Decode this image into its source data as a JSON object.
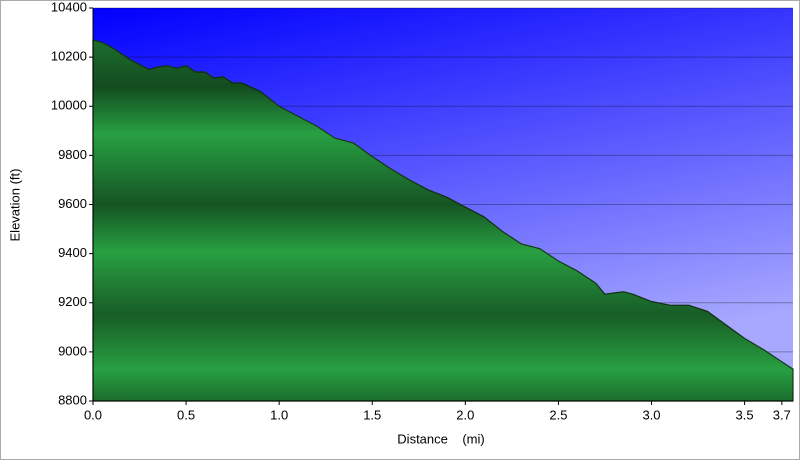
{
  "chart_data": {
    "type": "area",
    "x_label": "Distance    (mi)",
    "y_label": "Elevation (ft)",
    "color": "#2aa845",
    "x": [
      0.0,
      0.05,
      0.1,
      0.2,
      0.3,
      0.35,
      0.4,
      0.45,
      0.5,
      0.55,
      0.6,
      0.65,
      0.7,
      0.75,
      0.8,
      0.9,
      1.0,
      1.1,
      1.2,
      1.3,
      1.35,
      1.4,
      1.5,
      1.6,
      1.7,
      1.8,
      1.9,
      2.0,
      2.1,
      2.2,
      2.3,
      2.4,
      2.5,
      2.6,
      2.7,
      2.75,
      2.8,
      2.85,
      2.9,
      3.0,
      3.1,
      3.2,
      3.3,
      3.4,
      3.5,
      3.6,
      3.7,
      3.76
    ],
    "values": [
      10270,
      10260,
      10240,
      10190,
      10150,
      10160,
      10165,
      10155,
      10165,
      10140,
      10140,
      10115,
      10120,
      10095,
      10095,
      10060,
      10000,
      9960,
      9920,
      9870,
      9860,
      9850,
      9795,
      9745,
      9700,
      9660,
      9630,
      9590,
      9550,
      9490,
      9440,
      9420,
      9370,
      9330,
      9280,
      9235,
      9240,
      9245,
      9235,
      9205,
      9190,
      9190,
      9165,
      9110,
      9055,
      9010,
      8960,
      8930
    ],
    "xlim": [
      0,
      3.76
    ],
    "xticks": [
      {
        "value": 0,
        "label": "0.0"
      },
      0.5,
      {
        "value": 1,
        "label": "1.0"
      },
      1.5,
      {
        "value": 2,
        "label": "2.0"
      },
      2.5,
      {
        "value": 3,
        "label": "3.0"
      },
      3.5,
      3.7
    ],
    "ylim": [
      8800,
      10400
    ],
    "yticks": [
      8800,
      9000,
      9200,
      9400,
      9600,
      9800,
      10000,
      10200,
      10400
    ],
    "grid": true
  }
}
